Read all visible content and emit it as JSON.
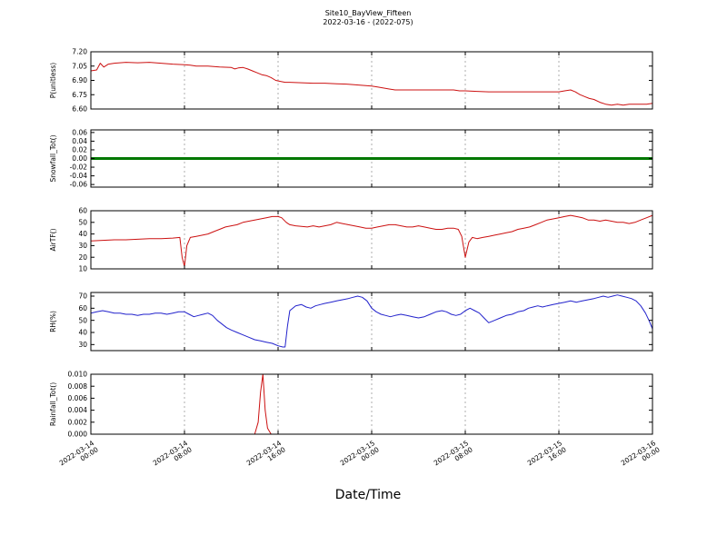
{
  "title": "Site10_BayView_Fifteen",
  "subtitle": "2022-03-16 - (2022-075)",
  "xlabel": "Date/Time",
  "colors": {
    "red": "#cc1111",
    "green": "#007700",
    "blue": "#2222cc",
    "grid": "#999999",
    "axis": "#000000",
    "background": "#ffffff"
  },
  "x_axis": {
    "range_hours": [
      0,
      48
    ],
    "hours": [
      0,
      8,
      16,
      24,
      32,
      40,
      48
    ],
    "tick_labels": [
      {
        "date": "2022-03-14",
        "time": "00:00"
      },
      {
        "date": "2022-03-14",
        "time": "08:00"
      },
      {
        "date": "2022-03-14",
        "time": "16:00"
      },
      {
        "date": "2022-03-15",
        "time": "00:00"
      },
      {
        "date": "2022-03-15",
        "time": "08:00"
      },
      {
        "date": "2022-03-15",
        "time": "16:00"
      },
      {
        "date": "2022-03-16",
        "time": "00:00"
      }
    ]
  },
  "chart_data": [
    {
      "type": "line",
      "ylabel": "P(unitless)",
      "color": "#cc1111",
      "linewidth": 1,
      "ylim": [
        6.6,
        7.2
      ],
      "yticks": [
        6.6,
        6.75,
        6.9,
        7.05,
        7.2
      ],
      "ytick_labels": [
        "6.60",
        "6.75",
        "6.90",
        "7.05",
        "7.20"
      ],
      "x": [
        0,
        0.5,
        0.8,
        1.1,
        1.5,
        2,
        3,
        4,
        5,
        6,
        6.5,
        7,
        8,
        8.5,
        9,
        10,
        10.5,
        11,
        12,
        12.3,
        12.6,
        13,
        13.4,
        13.8,
        14.2,
        14.6,
        15,
        15.4,
        15.8,
        16.2,
        16.6,
        17,
        18,
        19,
        20,
        21,
        22,
        23,
        23.5,
        24,
        24.5,
        25,
        25.5,
        26,
        27,
        28,
        29,
        30,
        31,
        31.5,
        32,
        33,
        34,
        35,
        36,
        37,
        38,
        39,
        40,
        40.5,
        41,
        41.4,
        41.8,
        42.2,
        42.6,
        43,
        43.5,
        44,
        44.5,
        45,
        45.5,
        46,
        46.5,
        47,
        47.5,
        48
      ],
      "y": [
        7.0,
        7.01,
        7.08,
        7.04,
        7.07,
        7.08,
        7.09,
        7.085,
        7.09,
        7.08,
        7.075,
        7.07,
        7.065,
        7.06,
        7.05,
        7.05,
        7.045,
        7.04,
        7.035,
        7.02,
        7.03,
        7.035,
        7.02,
        7.0,
        6.98,
        6.96,
        6.95,
        6.93,
        6.9,
        6.89,
        6.88,
        6.88,
        6.875,
        6.87,
        6.87,
        6.865,
        6.86,
        6.85,
        6.845,
        6.84,
        6.83,
        6.82,
        6.81,
        6.8,
        6.8,
        6.8,
        6.8,
        6.8,
        6.8,
        6.79,
        6.79,
        6.785,
        6.78,
        6.78,
        6.78,
        6.78,
        6.78,
        6.78,
        6.78,
        6.79,
        6.8,
        6.78,
        6.75,
        6.73,
        6.71,
        6.7,
        6.67,
        6.65,
        6.64,
        6.65,
        6.64,
        6.65,
        6.65,
        6.65,
        6.65,
        6.66
      ]
    },
    {
      "type": "line",
      "ylabel": "Snowfall_Tot()",
      "color": "#007700",
      "linewidth": 3,
      "ylim": [
        -0.066,
        0.066
      ],
      "yticks": [
        -0.06,
        -0.04,
        -0.02,
        0.0,
        0.02,
        0.04,
        0.06
      ],
      "ytick_labels": [
        "-0.06",
        "-0.04",
        "-0.02",
        "0.00",
        "0.02",
        "0.04",
        "0.06"
      ],
      "x": [
        0,
        48
      ],
      "y": [
        0.0,
        0.0
      ]
    },
    {
      "type": "line",
      "ylabel": "AirTF()",
      "color": "#cc1111",
      "linewidth": 1,
      "ylim": [
        10,
        60
      ],
      "yticks": [
        10,
        20,
        30,
        40,
        50,
        60
      ],
      "ytick_labels": [
        "10",
        "20",
        "30",
        "40",
        "50",
        "60"
      ],
      "x": [
        0,
        1,
        2,
        3,
        4,
        5,
        6,
        7,
        7.6,
        7.8,
        8,
        8.2,
        8.5,
        9,
        10,
        10.5,
        11,
        11.5,
        12,
        12.5,
        13,
        13.5,
        14,
        14.5,
        15,
        15.5,
        16,
        16.3,
        16.7,
        17,
        17.5,
        18,
        18.5,
        19,
        19.5,
        20,
        20.5,
        21,
        21.5,
        22,
        22.5,
        23,
        23.5,
        24,
        24.5,
        25,
        25.5,
        26,
        26.5,
        27,
        27.5,
        28,
        28.5,
        29,
        29.5,
        30,
        30.5,
        31,
        31.4,
        31.7,
        32,
        32.3,
        32.6,
        33,
        33.5,
        34,
        34.5,
        35,
        35.5,
        36,
        36.5,
        37,
        37.5,
        38,
        38.5,
        39,
        39.5,
        40,
        40.5,
        41,
        41.5,
        42,
        42.5,
        43,
        43.5,
        44,
        44.5,
        45,
        45.5,
        46,
        46.5,
        47,
        47.5,
        48
      ],
      "y": [
        34,
        34.5,
        35,
        35,
        35.5,
        36,
        36,
        36.5,
        37,
        20,
        12,
        30,
        37,
        38,
        40,
        42,
        44,
        46,
        47,
        48,
        50,
        51,
        52,
        53,
        54,
        55,
        55,
        54,
        50,
        48,
        47,
        46.5,
        46,
        47,
        46,
        47,
        48,
        50,
        49,
        48,
        47,
        46,
        45,
        45,
        46,
        47,
        48,
        48,
        47,
        46,
        46,
        47,
        46,
        45,
        44,
        44,
        45,
        45,
        44,
        38,
        20,
        33,
        37,
        36,
        37,
        38,
        39,
        40,
        41,
        42,
        44,
        45,
        46,
        48,
        50,
        52,
        53,
        54,
        55,
        56,
        55,
        54,
        52,
        52,
        51,
        52,
        51,
        50,
        50,
        49,
        50,
        52,
        54,
        56
      ]
    },
    {
      "type": "line",
      "ylabel": "RH(%)",
      "color": "#2222cc",
      "linewidth": 1,
      "ylim": [
        25,
        73
      ],
      "yticks": [
        30,
        40,
        50,
        60,
        70
      ],
      "ytick_labels": [
        "30",
        "40",
        "50",
        "60",
        "70"
      ],
      "x": [
        0,
        0.5,
        1,
        1.5,
        2,
        2.5,
        3,
        3.5,
        4,
        4.5,
        5,
        5.5,
        6,
        6.5,
        7,
        7.5,
        8,
        8.4,
        8.8,
        9.2,
        9.6,
        10,
        10.4,
        10.8,
        11.2,
        11.6,
        12,
        12.5,
        13,
        13.5,
        14,
        14.5,
        15,
        15.5,
        16,
        16.4,
        16.6,
        16.8,
        17,
        17.5,
        18,
        18.4,
        18.8,
        19.2,
        19.6,
        20,
        20.5,
        21,
        21.5,
        22,
        22.4,
        22.8,
        23.2,
        23.6,
        24,
        24.4,
        24.8,
        25.2,
        25.6,
        26,
        26.5,
        27,
        27.5,
        28,
        28.5,
        29,
        29.5,
        30,
        30.4,
        30.8,
        31.2,
        31.6,
        32,
        32.4,
        32.8,
        33.2,
        33.6,
        34,
        34.5,
        35,
        35.5,
        36,
        36.5,
        37,
        37.4,
        37.8,
        38.2,
        38.6,
        39,
        39.5,
        40,
        40.5,
        41,
        41.5,
        42,
        42.5,
        43,
        43.4,
        43.8,
        44.2,
        44.6,
        45,
        45.4,
        45.8,
        46.2,
        46.6,
        47,
        47.4,
        47.7,
        48
      ],
      "y": [
        56,
        57,
        58,
        57,
        56,
        56,
        55,
        55,
        54,
        55,
        55,
        56,
        56,
        55,
        56,
        57,
        57,
        55,
        53,
        54,
        55,
        56,
        54,
        50,
        47,
        44,
        42,
        40,
        38,
        36,
        34,
        33,
        32,
        31,
        29,
        28,
        28,
        45,
        58,
        62,
        63,
        61,
        60,
        62,
        63,
        64,
        65,
        66,
        67,
        68,
        69,
        70,
        69,
        66,
        60,
        57,
        55,
        54,
        53,
        54,
        55,
        54,
        53,
        52,
        53,
        55,
        57,
        58,
        57,
        55,
        54,
        55,
        58,
        60,
        58,
        56,
        52,
        48,
        50,
        52,
        54,
        55,
        57,
        58,
        60,
        61,
        62,
        61,
        62,
        63,
        64,
        65,
        66,
        65,
        66,
        67,
        68,
        69,
        70,
        69,
        70,
        71,
        70,
        69,
        68,
        66,
        62,
        56,
        50,
        43
      ]
    },
    {
      "type": "line",
      "ylabel": "Rainfall_Tot()",
      "color": "#cc1111",
      "linewidth": 1,
      "ylim": [
        0,
        0.01
      ],
      "yticks": [
        0.0,
        0.002,
        0.004,
        0.006,
        0.008,
        0.01
      ],
      "ytick_labels": [
        "0.000",
        "0.002",
        "0.004",
        "0.006",
        "0.008",
        "0.010"
      ],
      "x": [
        0,
        14,
        14.3,
        14.5,
        14.7,
        14.9,
        15.1,
        15.4,
        48
      ],
      "y": [
        0,
        0,
        0.002,
        0.007,
        0.01,
        0.004,
        0.001,
        0,
        0
      ]
    }
  ]
}
